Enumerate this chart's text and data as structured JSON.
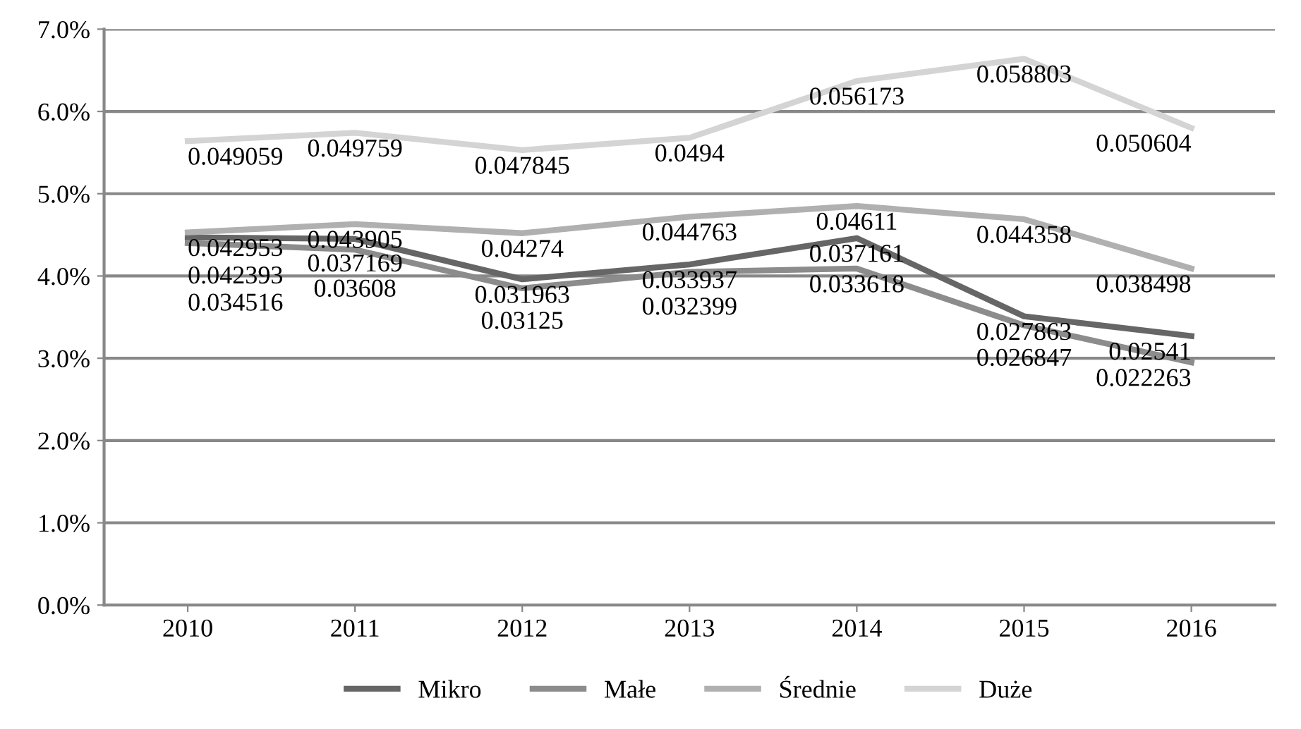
{
  "chart_data": {
    "type": "line",
    "categories": [
      "2010",
      "2011",
      "2012",
      "2013",
      "2014",
      "2015",
      "2016"
    ],
    "ylim": [
      0,
      0.07
    ],
    "yticks": [
      {
        "value": 0,
        "label": "0.0%"
      },
      {
        "value": 0.01,
        "label": "1.0%"
      },
      {
        "value": 0.02,
        "label": "2.0%"
      },
      {
        "value": 0.03,
        "label": "3.0%"
      },
      {
        "value": 0.04,
        "label": "4.0%"
      },
      {
        "value": 0.05,
        "label": "5.0%"
      },
      {
        "value": 0.06,
        "label": "6.0%"
      },
      {
        "value": 0.07,
        "label": "7.0%"
      }
    ],
    "grid": "y",
    "legend": "bottom",
    "marker": "none",
    "line_style": "solid",
    "series": [
      {
        "name": "Mikro",
        "color": "#666666",
        "values": [
          0.0447,
          0.0445,
          0.0396,
          0.0414,
          0.0446,
          0.0351,
          0.0327
        ]
      },
      {
        "name": "Małe",
        "color": "#8c8c8c",
        "values": [
          0.044,
          0.0432,
          0.0385,
          0.0405,
          0.0409,
          0.034,
          0.0295
        ]
      },
      {
        "name": "Średnie",
        "color": "#b0b0b0",
        "values": [
          0.0453,
          0.0463,
          0.0452,
          0.0472,
          0.0485,
          0.0469,
          0.0409
        ]
      },
      {
        "name": "Duże",
        "color": "#d4d4d4",
        "values": [
          0.0564,
          0.0574,
          0.0553,
          0.0568,
          0.0637,
          0.0664,
          0.058
        ]
      }
    ],
    "annotations": [
      {
        "text": "0.042953",
        "x": "2010",
        "y": 0.0453
      },
      {
        "text": "0.042393",
        "x": "2010",
        "y": 0.0447
      },
      {
        "text": "0.034516",
        "x": "2010",
        "y": 0.044
      },
      {
        "text": "0.043905",
        "x": "2011",
        "y": 0.0463
      },
      {
        "text": "0.037169",
        "x": "2011",
        "y": 0.0445
      },
      {
        "text": "0.03608",
        "x": "2011",
        "y": 0.0432
      },
      {
        "text": "0.04274",
        "x": "2012",
        "y": 0.0452
      },
      {
        "text": "0.031963",
        "x": "2012",
        "y": 0.0396
      },
      {
        "text": "0.03125",
        "x": "2012",
        "y": 0.0385
      },
      {
        "text": "0.044763",
        "x": "2013",
        "y": 0.0472
      },
      {
        "text": "0.033937",
        "x": "2013",
        "y": 0.0414
      },
      {
        "text": "0.032399",
        "x": "2013",
        "y": 0.0405
      },
      {
        "text": "0.04611",
        "x": "2014",
        "y": 0.0485
      },
      {
        "text": "0.037161",
        "x": "2014",
        "y": 0.0446
      },
      {
        "text": "0.033618",
        "x": "2014",
        "y": 0.0409
      },
      {
        "text": "0.044358",
        "x": "2015",
        "y": 0.0469
      },
      {
        "text": "0.027863",
        "x": "2015",
        "y": 0.0351
      },
      {
        "text": "0.026847",
        "x": "2015",
        "y": 0.034
      },
      {
        "text": "0.038498",
        "x": "2016",
        "y": 0.0409
      },
      {
        "text": "0.02541",
        "x": "2016",
        "y": 0.0327
      },
      {
        "text": "0.022263",
        "x": "2016",
        "y": 0.0295
      },
      {
        "text": "0.049059",
        "x": "2010",
        "y": 0.0564
      },
      {
        "text": "0.049759",
        "x": "2011",
        "y": 0.0574
      },
      {
        "text": "0.047845",
        "x": "2012",
        "y": 0.0553
      },
      {
        "text": "0.0494",
        "x": "2013",
        "y": 0.0568
      },
      {
        "text": "0.056173",
        "x": "2014",
        "y": 0.0637
      },
      {
        "text": "0.058803",
        "x": "2015",
        "y": 0.0664
      },
      {
        "text": "0.050604",
        "x": "2016",
        "y": 0.058
      }
    ]
  }
}
